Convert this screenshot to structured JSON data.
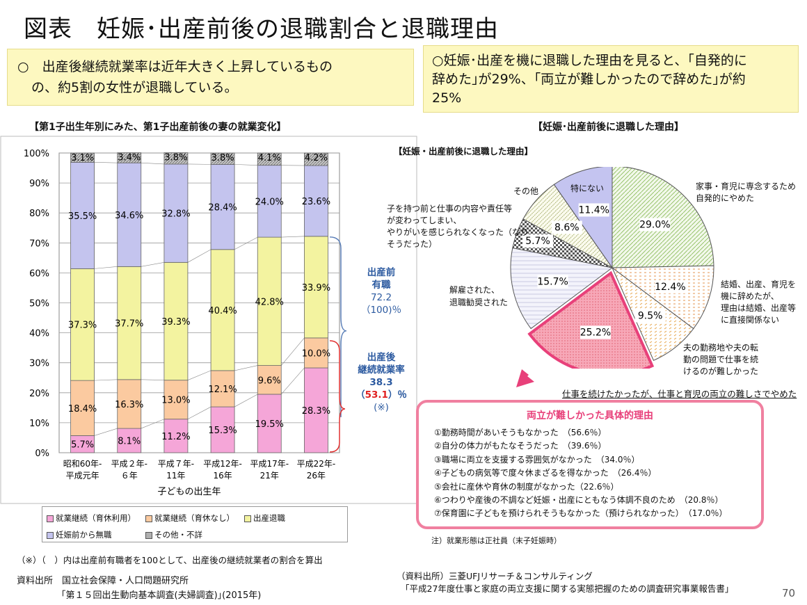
{
  "page_title": "図表　妊娠･出産前後の退職割合と退職理由",
  "summary_left": {
    "line1": "○　出産後継続就業率は近年大きく上昇しているもの",
    "line2": "の、約5割の女性が退職している。"
  },
  "summary_right": {
    "line1": "○妊娠･出産を機に退職した理由を見ると、｢自発的に",
    "line2": "辞めた｣が29%、｢両立が難しかったので辞めた｣が約",
    "line3": "25%"
  },
  "left_section_title": "【第1子出生年別にみた、第1子出産前後の妻の就業変化】",
  "right_section_title": "【妊娠･出産前後に退職した理由】",
  "pie_inner_title": "【妊娠・出産前後に退職した理由】",
  "colors": {
    "pink": "#f5a6d8",
    "orange": "#fbcaa0",
    "yellow": "#f3f3a0",
    "lavender": "#c4c4ee",
    "gray": "#b8b8b8",
    "blue_text": "#2c5aa0",
    "red_text": "#e02020",
    "accent_pink": "#e8407a"
  },
  "chart_data": [
    {
      "type": "bar",
      "stacked": true,
      "categories": [
        "昭和60年-\n平成元年",
        "平成２年-\n６年",
        "平成７年-\n11年",
        "平成12年-\n16年",
        "平成17年-\n21年",
        "平成22年-\n26年"
      ],
      "series": [
        {
          "name": "就業継続（育休利用）",
          "values": [
            5.7,
            8.1,
            11.2,
            15.3,
            19.5,
            28.3
          ]
        },
        {
          "name": "就業継続（育休なし）",
          "values": [
            18.4,
            16.3,
            13.0,
            12.1,
            9.6,
            10.0
          ]
        },
        {
          "name": "出産退職",
          "values": [
            37.3,
            37.7,
            39.3,
            40.4,
            42.8,
            33.9
          ]
        },
        {
          "name": "妊娠前から無職",
          "values": [
            35.5,
            34.6,
            32.8,
            28.4,
            24.0,
            23.6
          ]
        },
        {
          "name": "その他・不詳",
          "values": [
            3.1,
            3.4,
            3.8,
            3.8,
            4.1,
            4.2
          ]
        }
      ],
      "data_labels": [
        [
          "5.7%",
          "18.4%",
          "37.3%",
          "35.5%",
          "3.1%"
        ],
        [
          "8.1%",
          "16.3%",
          "37.7%",
          "34.6%",
          "3.4%"
        ],
        [
          "11.2%",
          "13.0%",
          "39.3%",
          "32.8%",
          "3.8%"
        ],
        [
          "15.3%",
          "12.1%",
          "40.4%",
          "28.4%",
          "3.8%"
        ],
        [
          "19.5%",
          "9.6%",
          "42.8%",
          "24.0%",
          "4.1%"
        ],
        [
          "28.3%",
          "10.0%",
          "33.9%",
          "23.6%",
          "4.2%"
        ]
      ],
      "y_ticks": [
        "0%",
        "10%",
        "20%",
        "30%",
        "40%",
        "50%",
        "60%",
        "70%",
        "80%",
        "90%",
        "100%"
      ],
      "ylim": [
        0,
        100
      ],
      "xlabel": "子どもの出生年",
      "grid": true,
      "legend": "bottom"
    },
    {
      "type": "pie",
      "title": "【妊娠・出産前後に退職した理由】",
      "slices": [
        {
          "label": "家事・育児に専念するため自発的にやめた",
          "value": 29.0,
          "text": "29.0%"
        },
        {
          "label": "結婚、出産、育児を機に辞めたが、理由は結婚、出産等に直接関係ない",
          "value": 12.4,
          "text": "12.4%"
        },
        {
          "label": "夫の勤務地や夫の転勤の問題で仕事を続けるのが難しかった",
          "value": 9.5,
          "text": "9.5%"
        },
        {
          "label": "仕事を続けたかったが、仕事と育児の両立の難しさでやめた",
          "value": 25.2,
          "text": "25.2%"
        },
        {
          "label": "解雇された、退職勧奨された",
          "value": 15.7,
          "text": "15.7%"
        },
        {
          "label": "子を持つ前と仕事の内容や責任等が変わってしまい、やりがいを感じられなくなった（なりそうだった）",
          "value": 5.7,
          "text": "5.7%"
        },
        {
          "label": "その他",
          "value": 8.6,
          "text": "8.6%"
        },
        {
          "label": "特にない",
          "value": 11.4,
          "text": "11.4%"
        }
      ]
    }
  ],
  "legend_labels": [
    "就業継続（育休利用）",
    "就業継続（育休なし）",
    "出産退職",
    "妊娠前から無職",
    "その他・不詳"
  ],
  "brace_top": {
    "l1": "出産前",
    "l2": "有職",
    "l3": "72.2",
    "l4": "（100)％"
  },
  "brace_bottom": {
    "l1": "出産後",
    "l2": "継続就業率",
    "l3": "38.3",
    "l4_open": "（",
    "l4_red": "53.1",
    "l4_close": "）％",
    "l5": "(※)"
  },
  "pie_labels": {
    "home1": "家事・育児に専念するため",
    "home2": "自発的にやめた",
    "unrel1": "結婚、出産、育児を",
    "unrel2": "機に辞めたが、",
    "unrel3": "理由は結婚、出産等",
    "unrel4": "に直接関係ない",
    "husband1": "夫の勤務地や夫の転",
    "husband2": "勤の問題で仕事を続",
    "husband3": "けるのが難しかった",
    "fired1": "解雇された、",
    "fired2": "退職勧奨された",
    "change1": "子を持つ前と仕事の内容や責任等",
    "change2": "が変わってしまい、",
    "change3": "やりがいを感じられなくなった（なり",
    "change4": "そうだった）",
    "other": "その他",
    "none": "特にない"
  },
  "highlight_caption": "仕事を続けたかったが、仕事と育児の両立の難しさでやめた",
  "reasons": {
    "title": "両立が難しかった具体的理由",
    "items": [
      "①勤務時間があいそうもなかった　（56.6％）",
      "②自分の体力がもたなそうだった　（39.6％）",
      "③職場に両立を支援する雰囲気がなかった　（34.0％）",
      "④子どもの病気等で度々休まざるを得なかった　（26.4％）",
      "⑤会社に産休や育休の制度がなかった（22.6％）",
      "⑥つわりや産後の不調など妊娠・出産にともなう体調不良のため　（20.8％）",
      "⑦保育園に子どもを預けられそうもなかった（預けられなかった）　（17.0％）"
    ]
  },
  "note_employment": "注）就業形態は正社員（末子妊娠時）",
  "note_ratio": "（※）（　）内は出産前有職者を100として、出産後の継続就業者の割合を算出",
  "source_left1": "資料出所　国立社会保障・人口問題研究所",
  "source_left2": "｢第１５回出生動向基本調査(夫婦調査)｣(2015年)",
  "source_right1": "（資料出所）三菱UFJリサーチ＆コンサルティング",
  "source_right2": "「平成27年度仕事と家庭の両立支援に関する実態把握のための調査研究事業報告書」",
  "page_number": "70"
}
